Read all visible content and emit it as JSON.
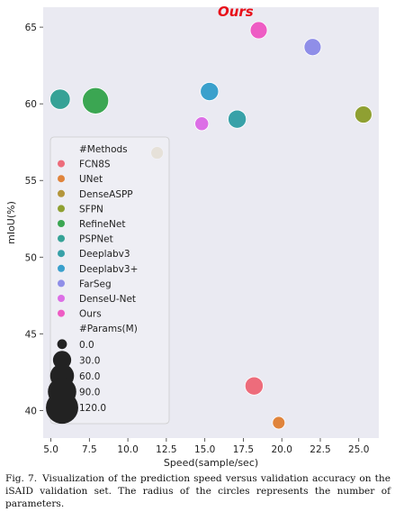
{
  "chart_data": {
    "type": "scatter",
    "title": "",
    "xlabel": "Speed(sample/sec)",
    "ylabel": "mIoU(%)",
    "xlim": [
      4.5,
      26.3
    ],
    "ylim": [
      38.2,
      66.3
    ],
    "xticks": [
      5.0,
      7.5,
      10.0,
      12.5,
      15.0,
      17.5,
      20.0,
      22.5,
      25.0
    ],
    "yticks": [
      40,
      45,
      50,
      55,
      60,
      65
    ],
    "xtick_labels": [
      "5.0",
      "7.5",
      "10.0",
      "12.5",
      "15.0",
      "17.5",
      "20.0",
      "22.5",
      "25.0"
    ],
    "ytick_labels": [
      "40",
      "45",
      "50",
      "55",
      "60",
      "65"
    ],
    "grid": false,
    "background": "#eaeaf2",
    "annotation": {
      "text": "Ours",
      "color": "#e8101a",
      "x": 17.0,
      "y": 66.0
    },
    "legend": {
      "placement": "lower-left",
      "methods_title": "#Methods",
      "sizes_title": "#Params(M)",
      "size_entries": [
        "0.0",
        "30.0",
        "60.0",
        "90.0",
        "120.0"
      ]
    },
    "series": [
      {
        "name": "FCN8S",
        "color": "#ed6c7b",
        "points": [
          {
            "x": 18.2,
            "y": 41.6,
            "params": 30
          }
        ]
      },
      {
        "name": "UNet",
        "color": "#e0843c",
        "points": [
          {
            "x": 19.8,
            "y": 39.2,
            "params": 8
          }
        ]
      },
      {
        "name": "DenseASPP",
        "color": "#b4963c",
        "points": [
          {
            "x": 11.9,
            "y": 56.8,
            "params": 8
          }
        ]
      },
      {
        "name": "SFPN",
        "color": "#8fa032",
        "points": [
          {
            "x": 25.3,
            "y": 59.3,
            "params": 25
          }
        ]
      },
      {
        "name": "RefineNet",
        "color": "#3ba652",
        "points": [
          {
            "x": 7.9,
            "y": 60.2,
            "params": 75
          }
        ]
      },
      {
        "name": "PSPNet",
        "color": "#36a296",
        "points": [
          {
            "x": 5.6,
            "y": 60.3,
            "params": 40
          }
        ]
      },
      {
        "name": "Deeplabv3",
        "color": "#38a1a8",
        "points": [
          {
            "x": 17.1,
            "y": 59.0,
            "params": 30
          }
        ]
      },
      {
        "name": "Deeplabv3+",
        "color": "#3aa0cc",
        "points": [
          {
            "x": 15.3,
            "y": 60.8,
            "params": 30
          }
        ]
      },
      {
        "name": "FarSeg",
        "color": "#8f8ee8",
        "points": [
          {
            "x": 22.0,
            "y": 63.7,
            "params": 25
          }
        ]
      },
      {
        "name": "DenseU-Net",
        "color": "#dc6fe6",
        "points": [
          {
            "x": 14.8,
            "y": 58.7,
            "params": 12
          }
        ]
      },
      {
        "name": "Ours",
        "color": "#ee5cc4",
        "points": [
          {
            "x": 18.5,
            "y": 64.8,
            "params": 25
          }
        ]
      }
    ]
  },
  "caption": {
    "label": "Fig. 7.",
    "text": "Visualization of the prediction speed versus validation accuracy on the iSAID validation set. The radius of the circles represents the number of parameters."
  }
}
